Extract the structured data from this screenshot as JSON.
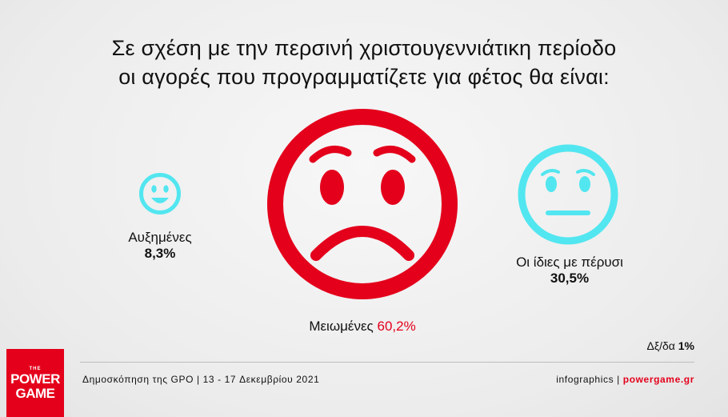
{
  "title": {
    "line1": "Σε σχέση με την περσινή χριστουγεννιάτικη περίοδο",
    "line2": "οι αγορές που προγραμματίζετε για φέτος θα είναι:"
  },
  "colors": {
    "accent_red": "#e4001b",
    "face_cyan": "#52e6f0"
  },
  "chart_data": {
    "type": "pie",
    "title": "Σε σχέση με την περσινή χριστουγεννιάτικη περίοδο οι αγορές που προγραμματίζετε για φέτος θα είναι:",
    "categories": [
      "Αυξημένες",
      "Μειωμένες",
      "Οι ίδιες με πέρυσι"
    ],
    "values": [
      8.3,
      60.2,
      30.5
    ],
    "value_labels": [
      "8,3%",
      "60,2%",
      "30,5%"
    ],
    "icons": [
      "happy-face-icon",
      "sad-face-icon",
      "neutral-face-icon"
    ],
    "note_label": "Δξ/δα",
    "note_value": "1%"
  },
  "footer": {
    "source": "Δημοσκόπηση της GPO | 13 - 17 Δεκεμβρίου 2021",
    "credit_prefix": "infographics | ",
    "credit_site": "powergame.gr"
  },
  "logo": {
    "the": "THE",
    "line1": "POWER",
    "line2": "GAME"
  }
}
